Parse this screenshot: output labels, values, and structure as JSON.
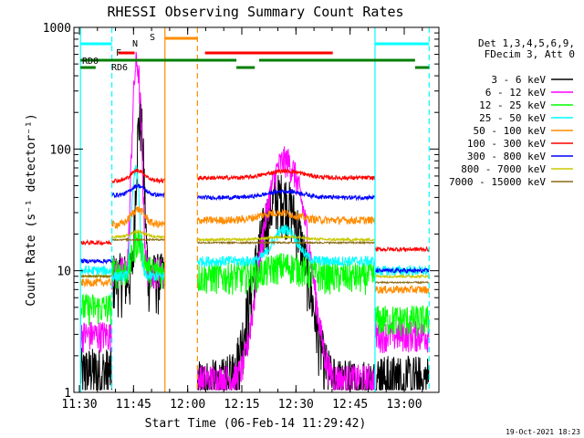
{
  "chart_data": {
    "type": "line",
    "title": "RHESSI Observing Summary Count Rates",
    "xlabel": "Start Time (06-Feb-14 11:29:42)",
    "ylabel": "Count Rate (s⁻¹ detector⁻¹)",
    "x_range_minutes": [
      11.5,
      13.2
    ],
    "y_scale": "log",
    "ylim": [
      1,
      1000
    ],
    "x_ticks": [
      {
        "label": "11:30",
        "t": 11.5
      },
      {
        "label": "11:45",
        "t": 11.75
      },
      {
        "label": "12:00",
        "t": 12.0
      },
      {
        "label": "12:15",
        "t": 12.25
      },
      {
        "label": "12:30",
        "t": 12.5
      },
      {
        "label": "12:45",
        "t": 12.75
      },
      {
        "label": "13:00",
        "t": 13.0
      }
    ],
    "y_ticks": [
      {
        "label": "1",
        "v": 1
      },
      {
        "label": "10",
        "v": 10
      },
      {
        "label": "100",
        "v": 100
      },
      {
        "label": "1000",
        "v": 1000
      }
    ],
    "legend_header": [
      "Det 1,3,4,5,6,9,",
      "FDecim 3, Att 0"
    ],
    "series": [
      {
        "name": "3 - 6 keV",
        "color": "#000000"
      },
      {
        "name": "6 - 12 keV",
        "color": "#ff00ff"
      },
      {
        "name": "12 - 25 keV",
        "color": "#00ff00"
      },
      {
        "name": "25 - 50 keV",
        "color": "#00ffff"
      },
      {
        "name": "50 - 100 keV",
        "color": "#ff8c00"
      },
      {
        "name": "100 - 300 keV",
        "color": "#ff0000"
      },
      {
        "name": "300 - 800 keV",
        "color": "#0000ff"
      },
      {
        "name": "800 - 7000 keV",
        "color": "#c8c800"
      },
      {
        "name": "7000 - 15000 keV",
        "color": "#8b6914"
      }
    ],
    "flag_labels": {
      "N": "N",
      "S": "S",
      "F": "F",
      "RD0": "RD0",
      "RD6": "RD6"
    },
    "timestamp": "19-Oct-2021 18:23"
  }
}
